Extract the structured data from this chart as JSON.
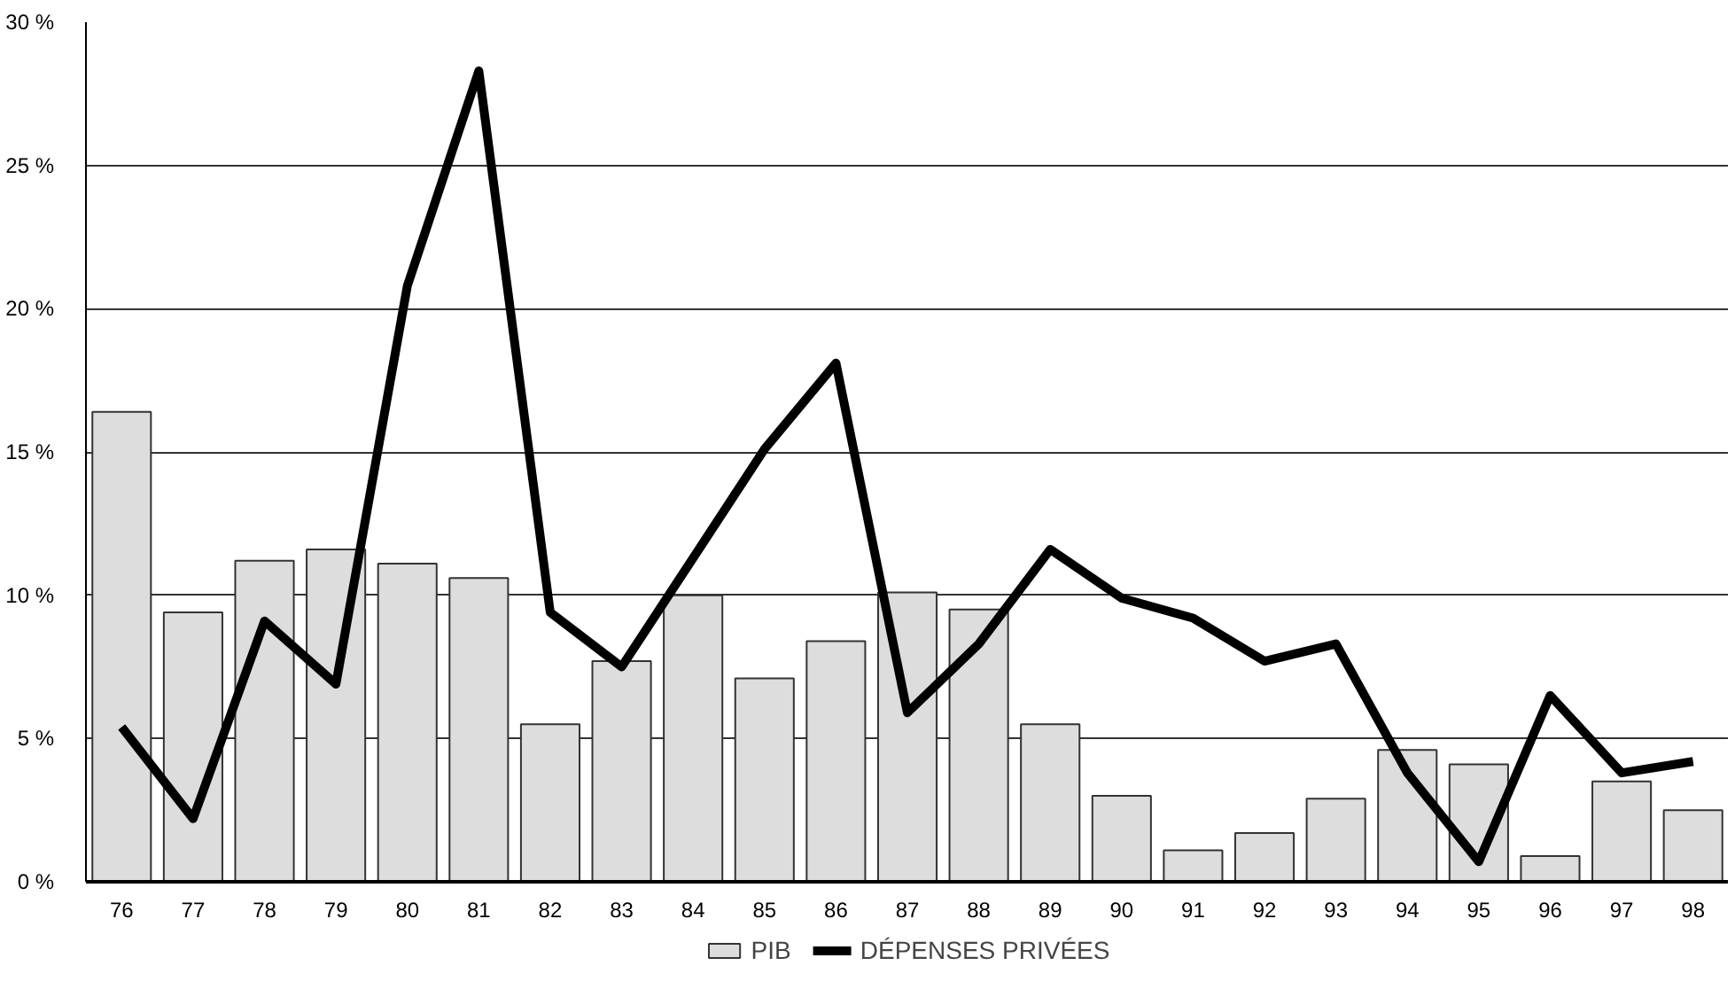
{
  "chart_data": {
    "type": "bar",
    "categories": [
      "76",
      "77",
      "78",
      "79",
      "80",
      "81",
      "82",
      "83",
      "84",
      "85",
      "86",
      "87",
      "88",
      "89",
      "90",
      "91",
      "92",
      "93",
      "94",
      "95",
      "96",
      "97",
      "98"
    ],
    "series": [
      {
        "name": "PIB",
        "color": "#dddddd",
        "values": [
          16.4,
          9.4,
          11.2,
          11.6,
          11.1,
          10.6,
          5.5,
          7.7,
          10.0,
          7.1,
          8.4,
          10.1,
          9.5,
          5.5,
          3.0,
          1.1,
          1.7,
          2.9,
          4.6,
          4.1,
          0.9,
          3.5,
          2.5
        ]
      },
      {
        "name": "DÉPENSES PRIVÉES",
        "type": "line",
        "color": "#000000",
        "values": [
          5.4,
          2.2,
          9.1,
          6.9,
          20.8,
          28.3,
          9.4,
          7.5,
          11.3,
          15.1,
          18.1,
          5.9,
          8.3,
          11.6,
          9.9,
          9.2,
          7.7,
          8.3,
          3.8,
          0.7,
          6.5,
          3.8,
          4.2
        ]
      }
    ],
    "ylim": [
      0,
      30
    ],
    "yticks": [
      {
        "value": 0,
        "label": "0 %"
      },
      {
        "value": 5,
        "label": "5 %"
      },
      {
        "value": 10,
        "label": "10 %"
      },
      {
        "value": 15,
        "label": "15 %"
      },
      {
        "value": 20,
        "label": "20 %"
      },
      {
        "value": 25,
        "label": "25 %"
      },
      {
        "value": 30,
        "label": "30 %"
      }
    ],
    "grid": "y",
    "legend": "bottom",
    "line_style": "solid",
    "marker": "none"
  }
}
